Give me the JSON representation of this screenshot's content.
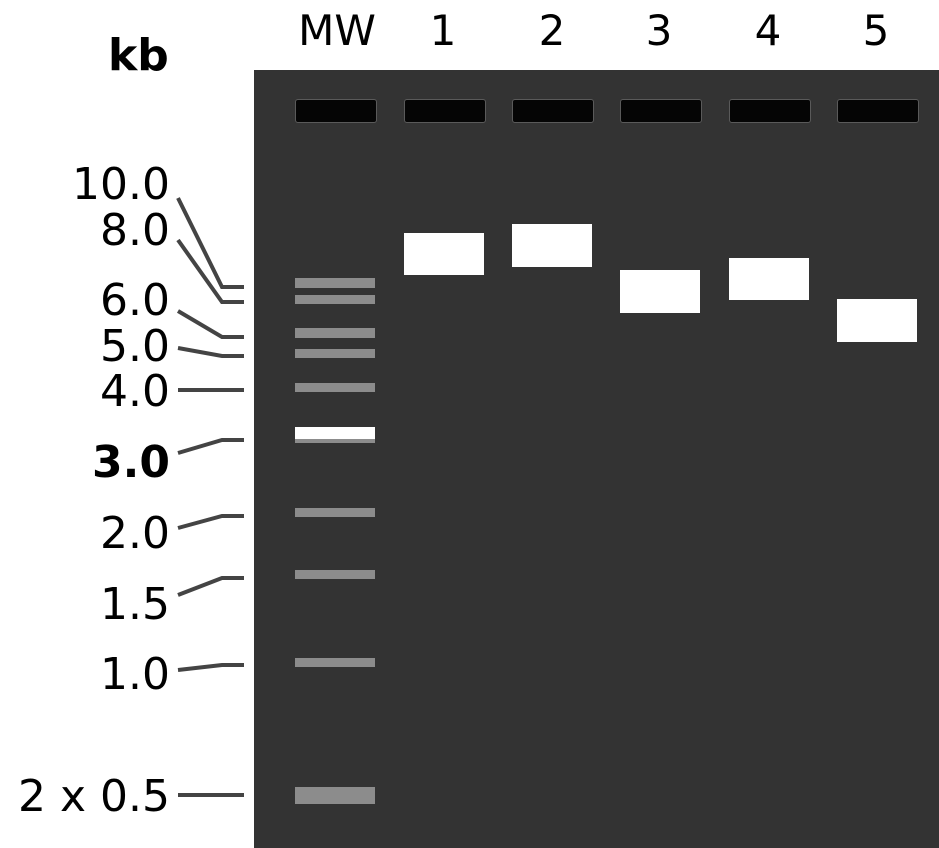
{
  "unit_label": "kb",
  "lanes": [
    {
      "label": "MW"
    },
    {
      "label": "1"
    },
    {
      "label": "2"
    },
    {
      "label": "3"
    },
    {
      "label": "4"
    },
    {
      "label": "5"
    }
  ],
  "ladder": [
    {
      "label": "10.0"
    },
    {
      "label": "8.0"
    },
    {
      "label": "6.0"
    },
    {
      "label": "5.0"
    },
    {
      "label": "4.0"
    },
    {
      "label": "3.0",
      "emphasis": true
    },
    {
      "label": "2.0"
    },
    {
      "label": "1.5"
    },
    {
      "label": "1.0"
    },
    {
      "label": "2 x 0.5"
    }
  ],
  "colors": {
    "gel": "#333333",
    "ladder_band": "#8c8c8c",
    "sample_band": "#ffffff",
    "well": "#050505",
    "leader": "#444444"
  }
}
